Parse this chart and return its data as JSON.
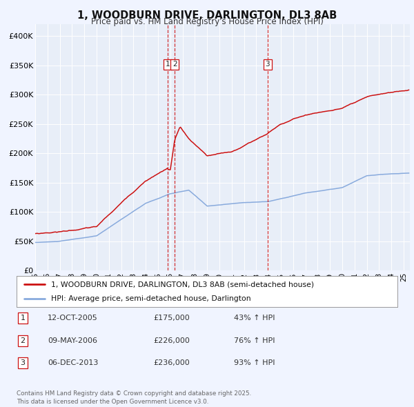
{
  "title": "1, WOODBURN DRIVE, DARLINGTON, DL3 8AB",
  "subtitle": "Price paid vs. HM Land Registry's House Price Index (HPI)",
  "bg_color": "#f0f4ff",
  "plot_bg_color": "#e8eef8",
  "ylim": [
    0,
    420000
  ],
  "yticks": [
    0,
    50000,
    100000,
    150000,
    200000,
    250000,
    300000,
    350000,
    400000
  ],
  "ytick_labels": [
    "£0",
    "£50K",
    "£100K",
    "£150K",
    "£200K",
    "£250K",
    "£300K",
    "£350K",
    "£400K"
  ],
  "xlim_start": 1995.0,
  "xlim_end": 2025.5,
  "transactions": [
    {
      "label": "1",
      "date": 2005.79,
      "price": 175000
    },
    {
      "label": "2",
      "date": 2006.36,
      "price": 226000
    },
    {
      "label": "3",
      "date": 2013.92,
      "price": 236000
    }
  ],
  "legend_line1": "1, WOODBURN DRIVE, DARLINGTON, DL3 8AB (semi-detached house)",
  "legend_line2": "HPI: Average price, semi-detached house, Darlington",
  "table_rows": [
    {
      "num": "1",
      "date": "12-OCT-2005",
      "price": "£175,000",
      "pct": "43% ↑ HPI"
    },
    {
      "num": "2",
      "date": "09-MAY-2006",
      "price": "£226,000",
      "pct": "76% ↑ HPI"
    },
    {
      "num": "3",
      "date": "06-DEC-2013",
      "price": "£236,000",
      "pct": "93% ↑ HPI"
    }
  ],
  "footer": "Contains HM Land Registry data © Crown copyright and database right 2025.\nThis data is licensed under the Open Government Licence v3.0.",
  "red_line_color": "#cc1111",
  "blue_line_color": "#88aadd",
  "vline_color": "#cc1111"
}
